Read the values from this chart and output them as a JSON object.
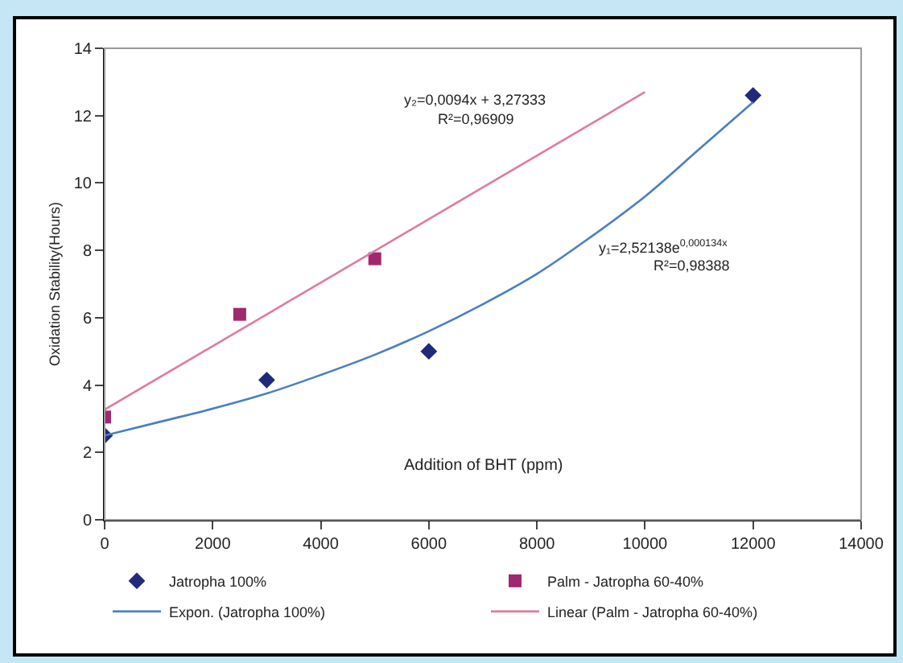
{
  "chart_data": {
    "type": "scatter",
    "xlabel": "Addition of BHT (ppm)",
    "ylabel": "Oxidation Stability(Hours)",
    "xlim": [
      0,
      14000
    ],
    "xticks": [
      0,
      2000,
      4000,
      6000,
      8000,
      10000,
      12000,
      14000
    ],
    "ylim": [
      0,
      14
    ],
    "yticks": [
      0,
      2,
      4,
      6,
      8,
      10,
      12,
      14
    ],
    "grid": false,
    "legend": "bottom",
    "series": [
      {
        "name": "Jatropha 100%",
        "marker": "diamond",
        "color": "#1f2a7a",
        "x": [
          0,
          3000,
          6000,
          12000
        ],
        "values": [
          2.5,
          4.15,
          5.0,
          12.6
        ]
      },
      {
        "name": "Palm - Jatropha 60-40%",
        "marker": "square",
        "color": "#a0286e",
        "x": [
          0,
          2500,
          5000
        ],
        "values": [
          3.05,
          6.1,
          7.75
        ]
      },
      {
        "name": "Expon. (Jatropha 100%)",
        "type": "line",
        "marker": "none",
        "color": "#4a7fc1",
        "x": [
          0,
          1000,
          2000,
          3000,
          4000,
          5000,
          6000,
          7000,
          8000,
          9000,
          10000,
          11000,
          12000
        ],
        "values": [
          2.5,
          2.9,
          3.3,
          3.75,
          4.3,
          4.9,
          5.6,
          6.4,
          7.3,
          8.4,
          9.6,
          11.0,
          12.4
        ]
      },
      {
        "name": "Linear (Palm - Jatropha 60-40%)",
        "type": "line",
        "marker": "none",
        "color": "#e07aa0",
        "x": [
          0,
          10000
        ],
        "values": [
          3.27,
          12.7
        ]
      }
    ],
    "annotations": [
      "y₂=0,0094x + 3,27333",
      "R²=0,96909",
      "y₁=2,52138e$^{0,000134x}$",
      "R²=0,98388"
    ]
  }
}
